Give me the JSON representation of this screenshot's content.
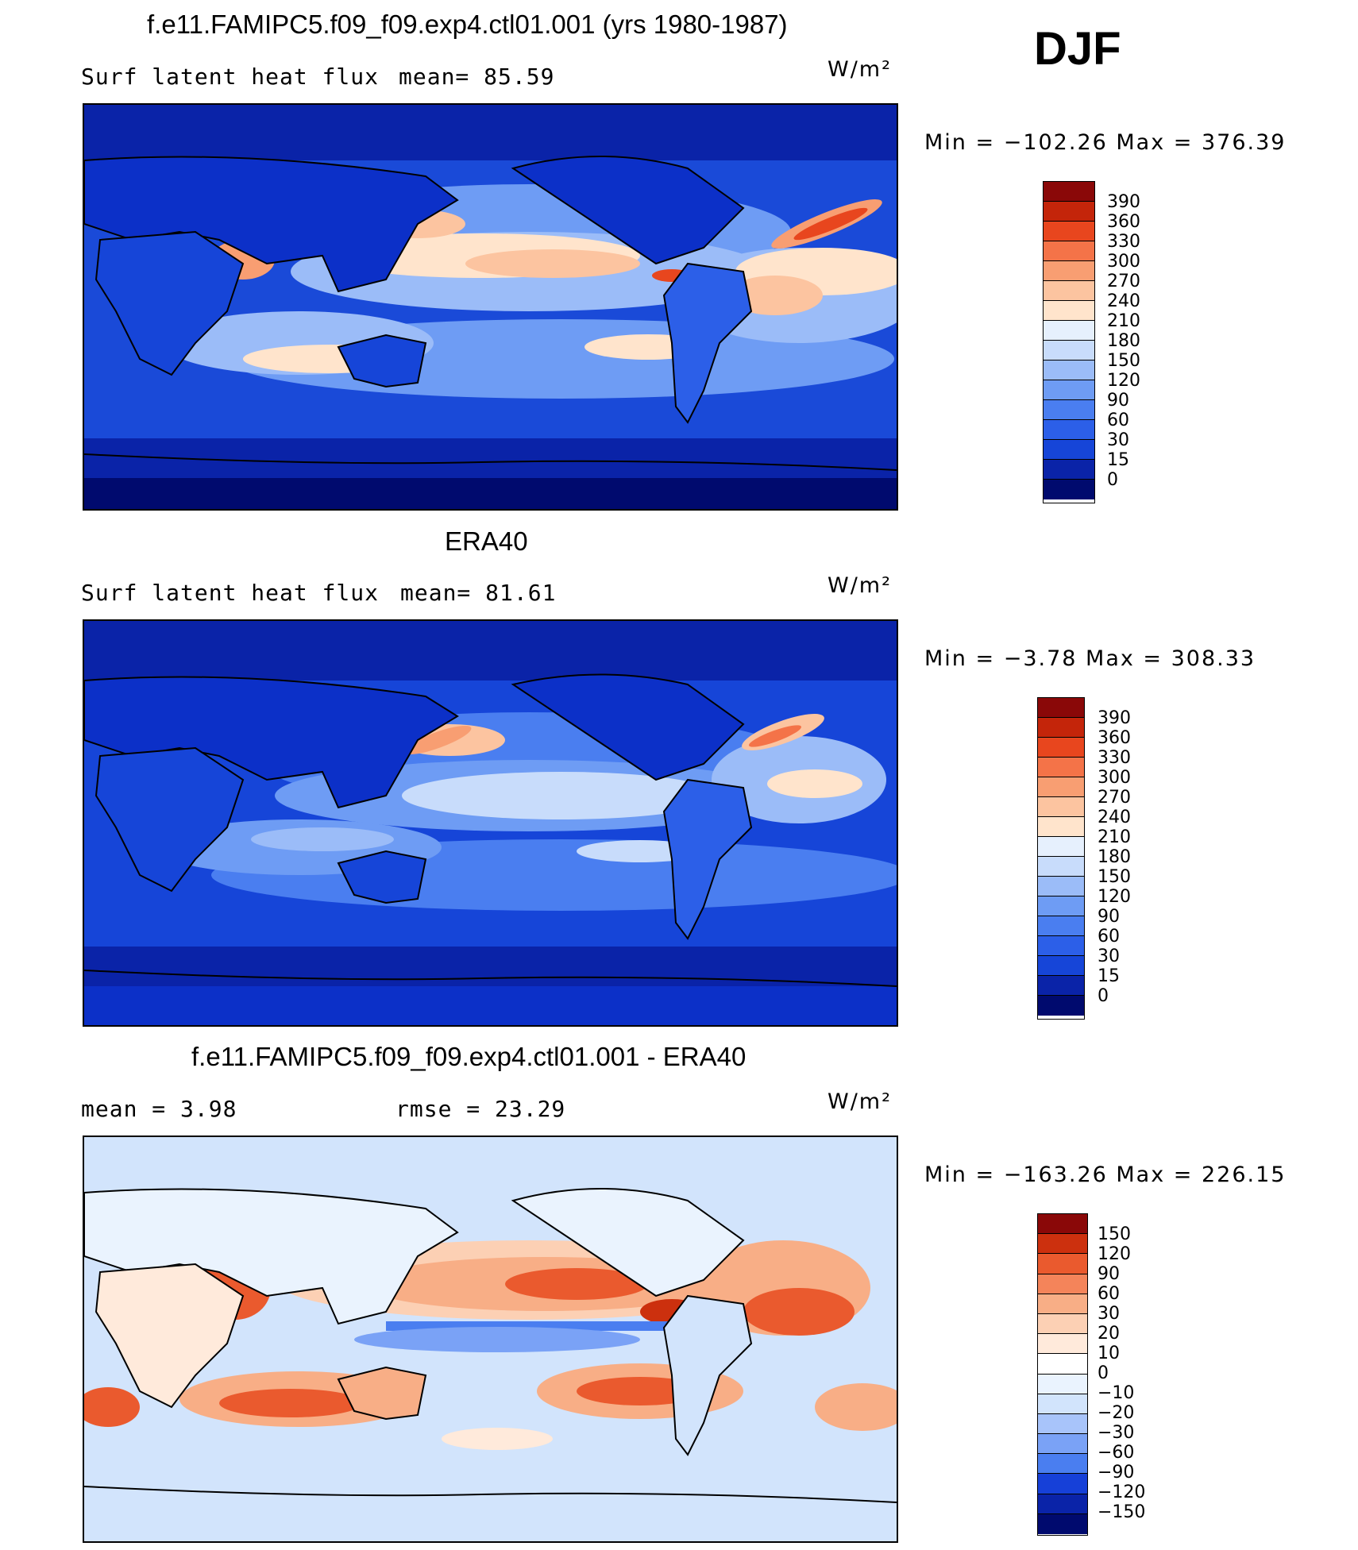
{
  "season": "DJF",
  "unit": "W/m²",
  "colors": {
    "abs_scale": [
      "#000a6e",
      "#0a23a8",
      "#0c30c8",
      "#1645d8",
      "#2c5fe8",
      "#4a7ef0",
      "#6e9cf4",
      "#9bbcf8",
      "#c8dcfb",
      "#e6f0fd",
      "#ffe4cc",
      "#fcc4a0",
      "#f89e72",
      "#f47348",
      "#e8461e",
      "#c4250a",
      "#8a0808"
    ],
    "diff_scale": [
      "#000a6e",
      "#0a23a8",
      "#1640d8",
      "#2c5fe8",
      "#4a7ef0",
      "#7aa2f6",
      "#a8c4fa",
      "#d2e4fc",
      "#eaf3fe",
      "#ffeadb",
      "#fcd0b4",
      "#f8ae86",
      "#f4845a",
      "#ea5a2e",
      "#cc300e",
      "#8a0808"
    ]
  },
  "panels": [
    {
      "title": "f.e11.FAMIPC5.f09_f09.exp4.ctl01.001 (yrs 1980-1987)",
      "left_label": "Surf  latent  heat  flux",
      "mid_label": "mean=   85.59",
      "unit": "W/m²",
      "range_label": "Min  =  −102.26  Max  =  376.39",
      "scale_labels": [
        "390",
        "360",
        "330",
        "300",
        "270",
        "240",
        "210",
        "180",
        "150",
        "120",
        "90",
        "60",
        "30",
        "15",
        "0"
      ]
    },
    {
      "title": "ERA40",
      "left_label": "Surf  latent  heat  flux",
      "mid_label": "mean=   81.61",
      "unit": "W/m²",
      "range_label": "Min  =    −3.78  Max  =  308.33",
      "scale_labels": [
        "390",
        "360",
        "330",
        "300",
        "270",
        "240",
        "210",
        "180",
        "150",
        "120",
        "90",
        "60",
        "30",
        "15",
        "0"
      ]
    },
    {
      "title": "f.e11.FAMIPC5.f09_f09.exp4.ctl01.001 - ERA40",
      "left_label": "mean  =      3.98",
      "mid_label": "rmse  =    23.29",
      "unit": "W/m²",
      "range_label": "Min  =  −163.26  Max  =  226.15",
      "scale_labels": [
        "150",
        "120",
        "90",
        "60",
        "30",
        "20",
        "10",
        "0",
        "−10",
        "−20",
        "−30",
        "−60",
        "−90",
        "−120",
        "−150"
      ]
    }
  ]
}
